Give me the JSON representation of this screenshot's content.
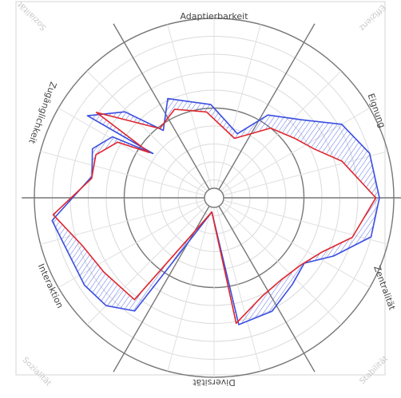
{
  "chart_data": {
    "type": "radar",
    "axes": [
      "Adaptierbarkeit",
      "Eignung",
      "Zentralität",
      "Diversität",
      "Interaktion",
      "Zugänglichkeit"
    ],
    "corner_labels": [
      "Sozialität",
      "Effizienz",
      "Sozialität",
      "Stabilität"
    ],
    "rmax": 1.0,
    "rings": [
      0.1,
      0.2,
      0.3,
      0.4,
      0.5,
      0.6,
      0.7,
      0.8,
      0.9,
      1.0
    ],
    "heavy_rings": [
      0.5,
      1.0
    ],
    "grid": true,
    "series": [
      {
        "color": "#3a4ee0",
        "points": [
          {
            "angle": -57,
            "r": 0.84
          },
          {
            "angle": -46,
            "r": 0.69
          },
          {
            "angle": -37,
            "r": 0.47
          },
          {
            "angle": -25,
            "r": 0.61
          },
          {
            "angle": -2,
            "r": 0.52
          },
          {
            "angle": 20,
            "r": 0.38
          },
          {
            "angle": 33,
            "r": 0.55
          },
          {
            "angle": 48,
            "r": 0.65
          },
          {
            "angle": 60,
            "r": 0.82
          },
          {
            "angle": 74,
            "r": 0.9
          },
          {
            "angle": 90,
            "r": 0.92
          },
          {
            "angle": 104,
            "r": 0.9
          },
          {
            "angle": 116,
            "r": 0.74
          },
          {
            "angle": 126,
            "r": 0.62
          },
          {
            "angle": 138,
            "r": 0.65
          },
          {
            "angle": 153,
            "r": 0.71
          },
          {
            "angle": 169,
            "r": 0.72
          },
          {
            "angle": 189,
            "r": 0.08
          },
          {
            "angle": 215,
            "r": 0.77
          },
          {
            "angle": 225,
            "r": 0.85
          },
          {
            "angle": 236,
            "r": 0.87
          },
          {
            "angle": 262,
            "r": 0.91
          },
          {
            "angle": 280,
            "r": 0.69
          },
          {
            "angle": 292,
            "r": 0.73
          },
          {
            "angle": 301,
            "r": 0.66
          },
          {
            "angle": 306,
            "r": 0.42
          }
        ]
      },
      {
        "color": "#e0262c",
        "points": [
          {
            "angle": -54,
            "r": 0.81
          },
          {
            "angle": -38,
            "r": 0.49
          },
          {
            "angle": -24,
            "r": 0.54
          },
          {
            "angle": -5,
            "r": 0.48
          },
          {
            "angle": 19,
            "r": 0.35
          },
          {
            "angle": 39,
            "r": 0.5
          },
          {
            "angle": 54,
            "r": 0.56
          },
          {
            "angle": 64,
            "r": 0.62
          },
          {
            "angle": 74,
            "r": 0.74
          },
          {
            "angle": 90,
            "r": 0.9
          },
          {
            "angle": 106,
            "r": 0.8
          },
          {
            "angle": 117,
            "r": 0.67
          },
          {
            "angle": 128,
            "r": 0.61
          },
          {
            "angle": 141,
            "r": 0.59
          },
          {
            "angle": 154,
            "r": 0.61
          },
          {
            "angle": 170,
            "r": 0.71
          },
          {
            "angle": 189,
            "r": 0.08
          },
          {
            "angle": 218,
            "r": 0.72
          },
          {
            "angle": 236,
            "r": 0.74
          },
          {
            "angle": 250,
            "r": 0.78
          },
          {
            "angle": 264,
            "r": 0.9
          },
          {
            "angle": 279,
            "r": 0.69
          },
          {
            "angle": 290,
            "r": 0.7
          },
          {
            "angle": 300,
            "r": 0.62
          },
          {
            "angle": 305,
            "r": 0.44
          }
        ]
      }
    ]
  }
}
